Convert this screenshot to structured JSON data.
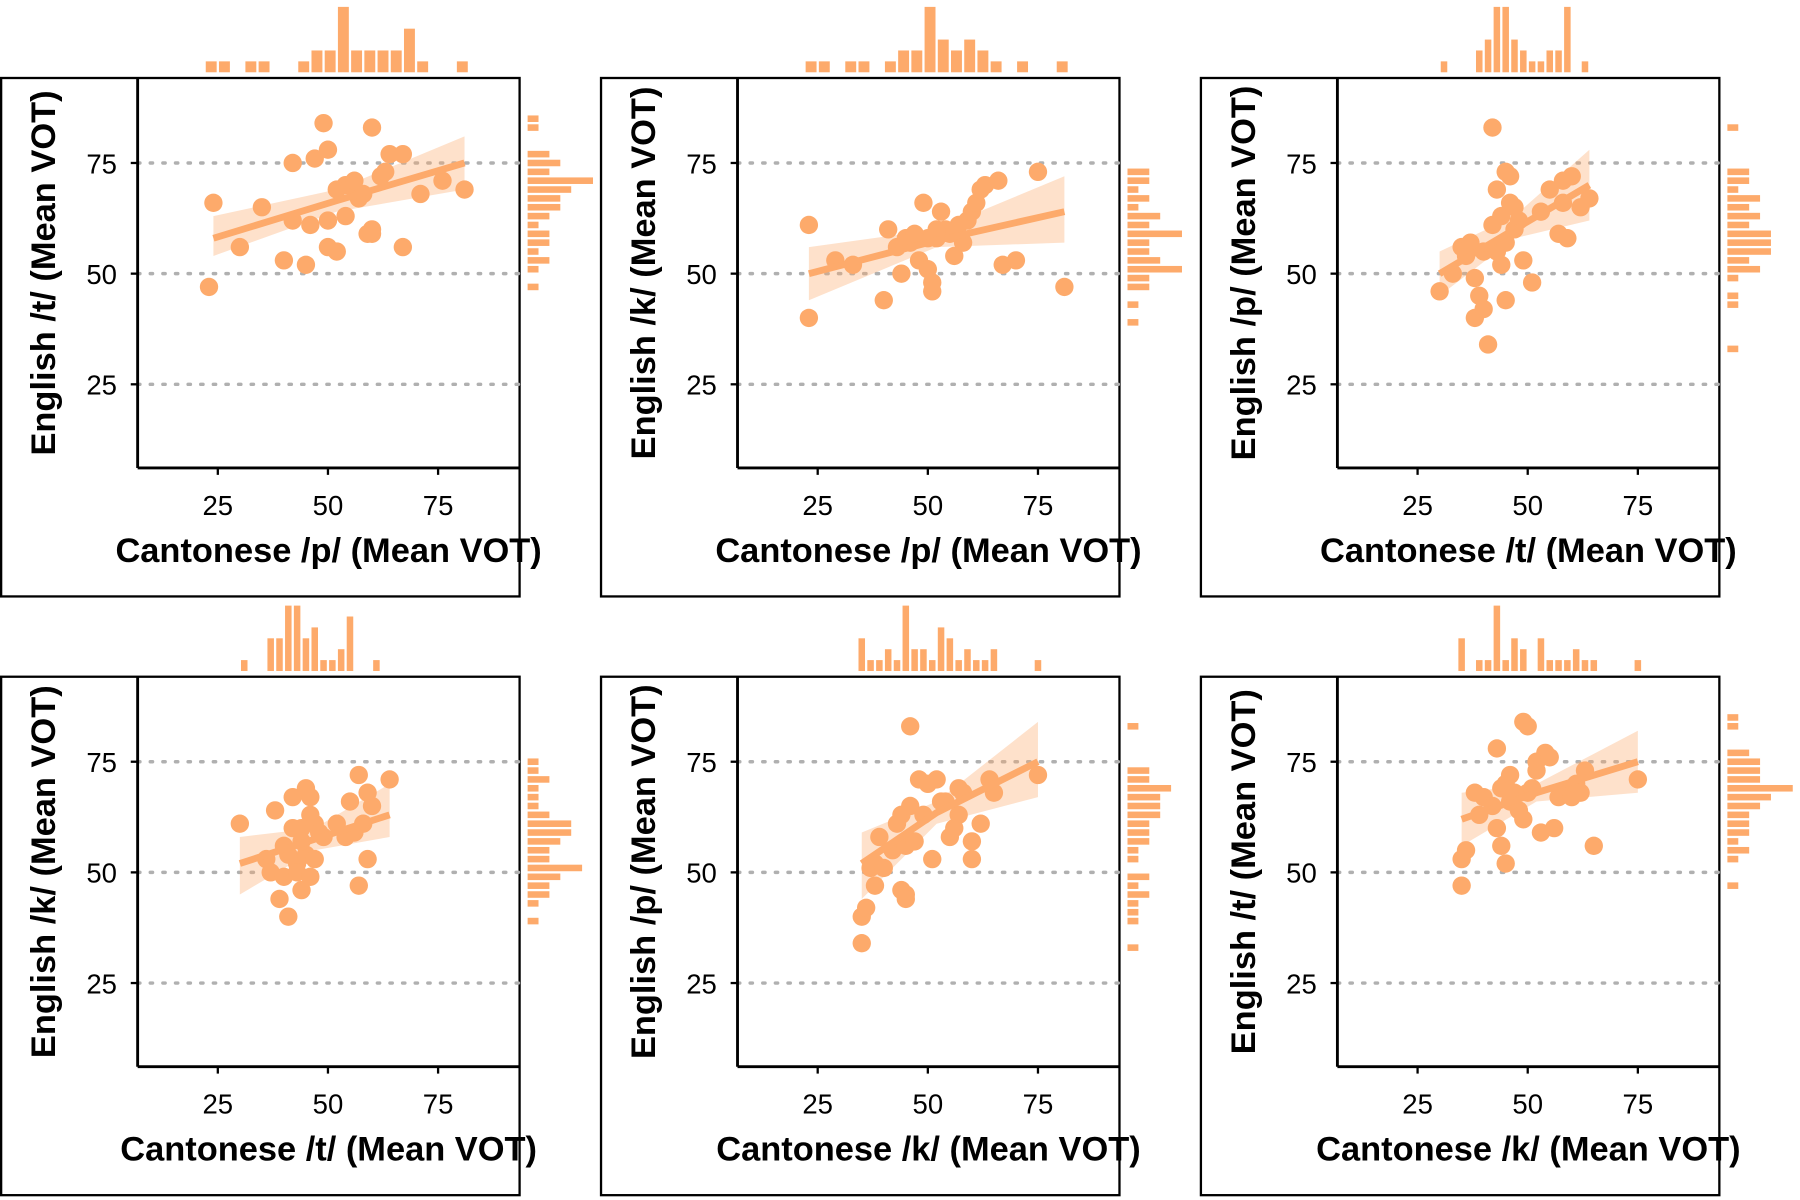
{
  "chart_data": [
    {
      "type": "scatter",
      "x_label": "Cantonese /p/ (Mean VOT)",
      "y_label": "English /t/ (Mean VOT)",
      "color": "#fdaa6b",
      "xlim": [
        6.8,
        93.5
      ],
      "ylim": [
        6.1,
        94.2
      ],
      "xticks": [
        25,
        50,
        75
      ],
      "yticks": [
        25,
        50,
        75
      ],
      "grid": true,
      "x": [
        23,
        24,
        30,
        35,
        40,
        42,
        42,
        45,
        47,
        49,
        50,
        50,
        50,
        52,
        52,
        54,
        54,
        55,
        57,
        58,
        59,
        60,
        60,
        60,
        62,
        63,
        64,
        67,
        67,
        71,
        76,
        81,
        56,
        46
      ],
      "y": [
        47,
        66,
        56,
        65,
        53,
        75,
        62,
        52,
        76,
        84,
        78,
        56,
        62,
        55,
        69,
        70,
        63,
        70,
        67,
        68,
        59,
        59,
        60,
        83,
        72,
        73,
        77,
        77,
        56,
        68,
        71,
        69,
        71,
        61
      ],
      "fit": {
        "x": [
          24,
          52,
          81
        ],
        "y": [
          58,
          66.5,
          75
        ],
        "lower": [
          54,
          64,
          69
        ],
        "upper": [
          63,
          69,
          81
        ]
      },
      "x_hist": {
        "bins": [
          22,
          25,
          28,
          31,
          34,
          37,
          40,
          43,
          46,
          49,
          52,
          55,
          58,
          61,
          64,
          67,
          70,
          73,
          76,
          79,
          82
        ],
        "counts": [
          1,
          1,
          0,
          1,
          1,
          0,
          0,
          1,
          2,
          2,
          6,
          2,
          2,
          2,
          2,
          4,
          1,
          0,
          0,
          1
        ]
      },
      "y_hist": {
        "bins": [
          46,
          48,
          50,
          52,
          54,
          56,
          58,
          60,
          62,
          64,
          66,
          68,
          70,
          72,
          74,
          76,
          78,
          80,
          82,
          84,
          86
        ],
        "counts": [
          1,
          0,
          1,
          2,
          1,
          2,
          2,
          1,
          2,
          3,
          3,
          4,
          6,
          2,
          3,
          2,
          0,
          0,
          1,
          1
        ]
      }
    },
    {
      "type": "scatter",
      "x_label": "Cantonese /p/ (Mean VOT)",
      "y_label": "English /k/ (Mean VOT)",
      "color": "#fdaa6b",
      "xlim": [
        6.8,
        93.5
      ],
      "ylim": [
        6.1,
        94.2
      ],
      "xticks": [
        25,
        50,
        75
      ],
      "yticks": [
        25,
        50,
        75
      ],
      "grid": true,
      "x": [
        23,
        23,
        29,
        33,
        40,
        41,
        43,
        44,
        45,
        46,
        48,
        49,
        50,
        50,
        51,
        51,
        52,
        53,
        54,
        55,
        56,
        57,
        58,
        59,
        60,
        61,
        62,
        63,
        66,
        67,
        70,
        75,
        81,
        47,
        52
      ],
      "y": [
        40,
        61,
        53,
        52,
        44,
        60,
        56,
        50,
        58,
        57,
        53,
        66,
        58,
        51,
        48,
        46,
        58,
        64,
        60,
        59,
        54,
        61,
        57,
        62,
        64,
        66,
        69,
        70,
        71,
        52,
        53,
        73,
        47,
        59,
        60
      ],
      "fit": {
        "x": [
          23,
          52,
          81
        ],
        "y": [
          50,
          57.5,
          64
        ],
        "lower": [
          44,
          56,
          57
        ],
        "upper": [
          56,
          60,
          72
        ]
      },
      "x_hist": {
        "bins": [
          22,
          25,
          28,
          31,
          34,
          37,
          40,
          43,
          46,
          49,
          52,
          55,
          58,
          61,
          64,
          67,
          70,
          73,
          76,
          79,
          82
        ],
        "counts": [
          1,
          1,
          0,
          1,
          1,
          0,
          1,
          2,
          2,
          6,
          3,
          2,
          3,
          2,
          1,
          0,
          1,
          0,
          0,
          1
        ]
      },
      "y_hist": {
        "bins": [
          38,
          40,
          42,
          44,
          46,
          48,
          50,
          52,
          54,
          56,
          58,
          60,
          62,
          64,
          66,
          68,
          70,
          72,
          74,
          76,
          78
        ],
        "counts": [
          1,
          0,
          1,
          0,
          2,
          2,
          5,
          3,
          2,
          2,
          5,
          2,
          3,
          1,
          2,
          1,
          2,
          2,
          0,
          0
        ]
      }
    },
    {
      "type": "scatter",
      "x_label": "Cantonese /t/ (Mean VOT)",
      "y_label": "English /p/ (Mean VOT)",
      "color": "#fdaa6b",
      "xlim": [
        6.8,
        93.5
      ],
      "ylim": [
        6.1,
        94.2
      ],
      "xticks": [
        25,
        50,
        75
      ],
      "yticks": [
        25,
        50,
        75
      ],
      "grid": true,
      "x": [
        30,
        33,
        35,
        36,
        37,
        38,
        38,
        39,
        40,
        40,
        41,
        42,
        42,
        43,
        43,
        44,
        44,
        45,
        45,
        45,
        46,
        46,
        47,
        47,
        48,
        49,
        51,
        53,
        55,
        57,
        58,
        58,
        59,
        60,
        62,
        64
      ],
      "y": [
        46,
        50,
        56,
        54,
        57,
        49,
        40,
        45,
        42,
        55,
        34,
        61,
        83,
        55,
        69,
        52,
        63,
        57,
        44,
        73,
        72,
        66,
        60,
        65,
        62,
        53,
        48,
        64,
        69,
        59,
        71,
        66,
        58,
        72,
        65,
        67
      ],
      "fit": {
        "x": [
          30,
          47,
          64
        ],
        "y": [
          50,
          60,
          70
        ],
        "lower": [
          45,
          58,
          62
        ],
        "upper": [
          55,
          63,
          78
        ]
      },
      "x_hist": {
        "bins": [
          30,
          32,
          34,
          36,
          38,
          40,
          42,
          44,
          46,
          48,
          50,
          52,
          54,
          56,
          58,
          60,
          62,
          64,
          66
        ],
        "counts": [
          1,
          0,
          0,
          0,
          2,
          3,
          6,
          6,
          3,
          2,
          1,
          1,
          2,
          2,
          6,
          0,
          1,
          0
        ]
      },
      "y_hist": {
        "bins": [
          32,
          34,
          36,
          38,
          40,
          42,
          44,
          46,
          48,
          50,
          52,
          54,
          56,
          58,
          60,
          62,
          64,
          66,
          68,
          70,
          72,
          74,
          76,
          78,
          80,
          82,
          84,
          86
        ],
        "counts": [
          1,
          0,
          0,
          0,
          0,
          1,
          1,
          0,
          1,
          3,
          2,
          4,
          4,
          4,
          2,
          3,
          2,
          3,
          1,
          2,
          2,
          0,
          0,
          0,
          0,
          1,
          0
        ]
      }
    },
    {
      "type": "scatter",
      "x_label": "Cantonese /t/ (Mean VOT)",
      "y_label": "English /k/ (Mean VOT)",
      "color": "#fdaa6b",
      "xlim": [
        6.8,
        93.5
      ],
      "ylim": [
        6.1,
        94.2
      ],
      "xticks": [
        25,
        50,
        75
      ],
      "yticks": [
        25,
        50,
        75
      ],
      "grid": true,
      "x": [
        30,
        36,
        37,
        38,
        39,
        40,
        40,
        41,
        41,
        42,
        42,
        43,
        43,
        44,
        44,
        45,
        45,
        46,
        46,
        47,
        47,
        48,
        49,
        52,
        54,
        55,
        56,
        57,
        57,
        58,
        59,
        59,
        60,
        64,
        46,
        44
      ],
      "y": [
        61,
        53,
        50,
        64,
        44,
        49,
        56,
        54,
        40,
        60,
        67,
        52,
        50,
        60,
        46,
        69,
        54,
        63,
        67,
        53,
        61,
        59,
        58,
        61,
        58,
        66,
        59,
        47,
        72,
        61,
        53,
        68,
        65,
        71,
        49,
        57
      ],
      "fit": {
        "x": [
          30,
          47,
          64
        ],
        "y": [
          52,
          57.5,
          63
        ],
        "lower": [
          45,
          55,
          58
        ],
        "upper": [
          58,
          60,
          70
        ]
      },
      "x_hist": {
        "bins": [
          30,
          32,
          34,
          36,
          38,
          40,
          42,
          44,
          46,
          48,
          50,
          52,
          54,
          56,
          58,
          60,
          62,
          64,
          66
        ],
        "counts": [
          1,
          0,
          0,
          3,
          3,
          6,
          6,
          3,
          4,
          1,
          1,
          2,
          5,
          0,
          0,
          1,
          0,
          0
        ]
      },
      "y_hist": {
        "bins": [
          38,
          40,
          42,
          44,
          46,
          48,
          50,
          52,
          54,
          56,
          58,
          60,
          62,
          64,
          66,
          68,
          70,
          72,
          74,
          76
        ],
        "counts": [
          1,
          0,
          1,
          2,
          2,
          3,
          5,
          2,
          2,
          3,
          4,
          4,
          2,
          1,
          1,
          1,
          2,
          1,
          1
        ]
      }
    },
    {
      "type": "scatter",
      "x_label": "Cantonese /k/ (Mean VOT)",
      "y_label": "English /p/ (Mean VOT)",
      "color": "#fdaa6b",
      "xlim": [
        6.8,
        93.5
      ],
      "ylim": [
        6.1,
        94.2
      ],
      "xticks": [
        25,
        50,
        75
      ],
      "yticks": [
        25,
        50,
        75
      ],
      "grid": true,
      "x": [
        35,
        35,
        36,
        37,
        38,
        38,
        39,
        40,
        42,
        43,
        44,
        44,
        45,
        45,
        45,
        46,
        46,
        47,
        48,
        49,
        50,
        51,
        52,
        53,
        54,
        55,
        56,
        57,
        57,
        58,
        60,
        60,
        62,
        64,
        65,
        75
      ],
      "y": [
        34,
        40,
        42,
        51,
        47,
        52,
        58,
        51,
        55,
        61,
        63,
        46,
        45,
        44,
        56,
        83,
        65,
        57,
        71,
        63,
        70,
        53,
        71,
        66,
        66,
        58,
        60,
        63,
        69,
        68,
        57,
        53,
        61,
        71,
        68,
        72
      ],
      "fit": {
        "x": [
          35,
          52,
          75
        ],
        "y": [
          52,
          63.5,
          75
        ],
        "lower": [
          44,
          61,
          67
        ],
        "upper": [
          59,
          66,
          84
        ]
      },
      "x_hist": {
        "bins": [
          34,
          36,
          38,
          40,
          42,
          44,
          46,
          48,
          50,
          52,
          54,
          56,
          58,
          60,
          62,
          64,
          66,
          68,
          70,
          72,
          74,
          76
        ],
        "counts": [
          3,
          1,
          1,
          2,
          1,
          6,
          2,
          2,
          1,
          4,
          3,
          1,
          2,
          1,
          1,
          2,
          0,
          0,
          0,
          0,
          1
        ]
      },
      "y_hist": {
        "bins": [
          32,
          34,
          36,
          38,
          40,
          42,
          44,
          46,
          48,
          50,
          52,
          54,
          56,
          58,
          60,
          62,
          64,
          66,
          68,
          70,
          72,
          74,
          76,
          78,
          80,
          82,
          84,
          86
        ],
        "counts": [
          1,
          0,
          0,
          1,
          1,
          1,
          2,
          1,
          2,
          0,
          1,
          1,
          2,
          2,
          2,
          3,
          3,
          3,
          4,
          2,
          2,
          0,
          0,
          0,
          0,
          1,
          0
        ]
      }
    },
    {
      "type": "scatter",
      "x_label": "Cantonese /k/ (Mean VOT)",
      "y_label": "English /t/ (Mean VOT)",
      "color": "#fdaa6b",
      "xlim": [
        6.8,
        93.5
      ],
      "ylim": [
        6.1,
        94.2
      ],
      "xticks": [
        25,
        50,
        75
      ],
      "yticks": [
        25,
        50,
        75
      ],
      "grid": true,
      "x": [
        35,
        35,
        36,
        38,
        39,
        40,
        42,
        43,
        43,
        44,
        44,
        45,
        45,
        46,
        46,
        47,
        48,
        49,
        49,
        50,
        50,
        51,
        52,
        52,
        53,
        54,
        55,
        56,
        57,
        58,
        60,
        61,
        62,
        63,
        65,
        75
      ],
      "y": [
        47,
        53,
        55,
        68,
        63,
        67,
        65,
        78,
        60,
        56,
        69,
        70,
        52,
        72,
        66,
        68,
        64,
        84,
        62,
        83,
        68,
        69,
        73,
        75,
        59,
        77,
        76,
        60,
        67,
        68,
        67,
        70,
        68,
        73,
        56,
        71
      ],
      "fit": {
        "x": [
          35,
          52,
          75
        ],
        "y": [
          62,
          68,
          75
        ],
        "lower": [
          56,
          66,
          68
        ],
        "upper": [
          68,
          70,
          82
        ]
      },
      "x_hist": {
        "bins": [
          34,
          36,
          38,
          40,
          42,
          44,
          46,
          48,
          50,
          52,
          54,
          56,
          58,
          60,
          62,
          64,
          66,
          68,
          70,
          72,
          74,
          76
        ],
        "counts": [
          3,
          0,
          1,
          1,
          6,
          1,
          3,
          2,
          0,
          3,
          1,
          1,
          1,
          2,
          1,
          1,
          0,
          0,
          0,
          0,
          1
        ]
      },
      "y_hist": {
        "bins": [
          46,
          48,
          50,
          52,
          54,
          56,
          58,
          60,
          62,
          64,
          66,
          68,
          70,
          72,
          74,
          76,
          78,
          80,
          82,
          84,
          86
        ],
        "counts": [
          1,
          0,
          0,
          1,
          2,
          1,
          2,
          2,
          2,
          3,
          4,
          6,
          3,
          3,
          3,
          2,
          0,
          0,
          1,
          1
        ]
      }
    }
  ]
}
